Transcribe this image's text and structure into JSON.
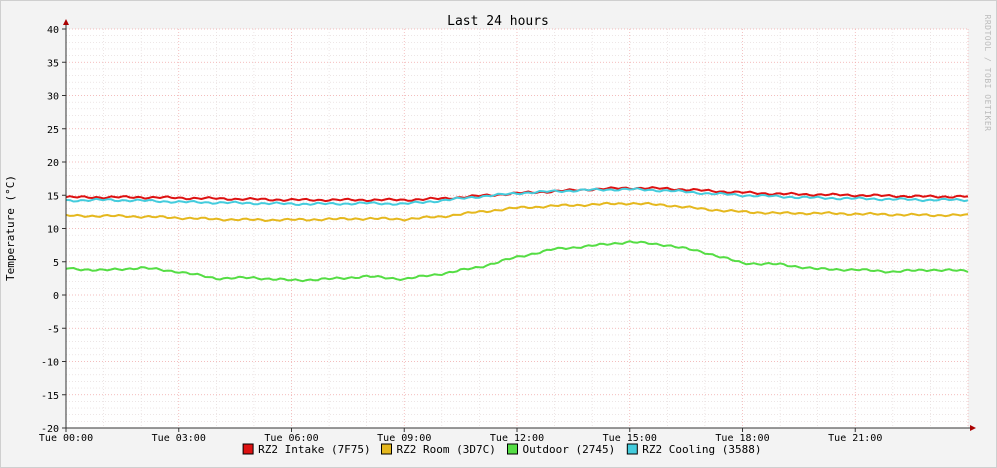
{
  "chart_data": {
    "type": "line",
    "title": "Last 24 hours",
    "xlabel": "",
    "ylabel": "Temperature (°C)",
    "ylim": [
      -20,
      40
    ],
    "yticks": [
      "40",
      "35",
      "30",
      "25",
      "20",
      "15",
      "10",
      "5",
      "0",
      "-5",
      "-10",
      "-15",
      "-20"
    ],
    "xticks": [
      "Tue 00:00",
      "Tue 03:00",
      "Tue 06:00",
      "Tue 09:00",
      "Tue 12:00",
      "Tue 15:00",
      "Tue 18:00",
      "Tue 21:00"
    ],
    "x_hours": [
      0,
      1,
      2,
      3,
      4,
      5,
      6,
      7,
      8,
      9,
      10,
      11,
      12,
      13,
      14,
      15,
      16,
      17,
      18,
      19,
      20,
      21,
      22,
      23,
      24
    ],
    "grid": true,
    "legend_placement": "bottom",
    "watermark": "RRDTOOL / TOBI OETIKER",
    "series": [
      {
        "name": "RZ2 Intake (7F75)",
        "color": "#dd1111",
        "values": [
          14.7,
          14.7,
          14.7,
          14.6,
          14.5,
          14.4,
          14.3,
          14.3,
          14.3,
          14.3,
          14.5,
          14.9,
          15.3,
          15.6,
          15.9,
          16.1,
          16.0,
          15.7,
          15.4,
          15.2,
          15.1,
          15.0,
          14.9,
          14.8,
          14.8
        ]
      },
      {
        "name": "RZ2 Room (3D7C)",
        "color": "#e5b81e",
        "values": [
          11.9,
          11.9,
          11.8,
          11.6,
          11.4,
          11.3,
          11.3,
          11.4,
          11.5,
          11.4,
          11.8,
          12.5,
          13.1,
          13.4,
          13.6,
          13.8,
          13.5,
          12.9,
          12.5,
          12.3,
          12.3,
          12.2,
          12.1,
          12.0,
          12.0
        ]
      },
      {
        "name": "Outdoor (2745)",
        "color": "#55dd44",
        "values": [
          4.0,
          3.7,
          4.1,
          3.5,
          2.5,
          2.6,
          2.2,
          2.4,
          2.8,
          2.4,
          3.2,
          4.2,
          5.7,
          6.9,
          7.4,
          8.0,
          7.5,
          6.4,
          4.8,
          4.6,
          3.9,
          3.8,
          3.5,
          3.8,
          3.6
        ]
      },
      {
        "name": "RZ2 Cooling (3588)",
        "color": "#44ccdd",
        "values": [
          14.2,
          14.3,
          14.2,
          14.0,
          13.9,
          13.8,
          13.7,
          13.7,
          13.8,
          13.7,
          14.2,
          14.8,
          15.3,
          15.6,
          15.8,
          15.9,
          15.7,
          15.3,
          15.0,
          14.8,
          14.6,
          14.5,
          14.4,
          14.3,
          14.3
        ]
      }
    ]
  }
}
